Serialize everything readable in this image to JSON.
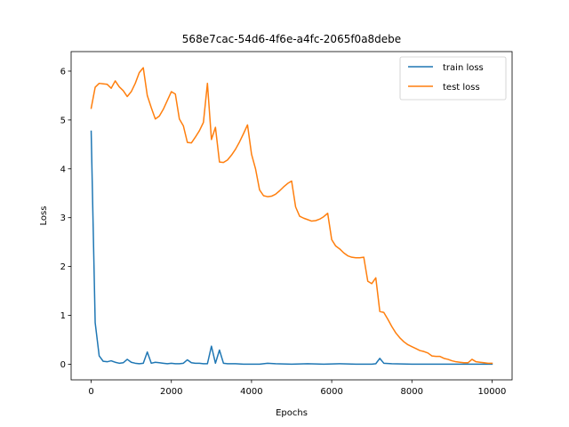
{
  "chart_data": {
    "type": "line",
    "title": "568e7cac-54d6-4f6e-a4fc-2065f0a8debe",
    "xlabel": "Epochs",
    "ylabel": "Loss",
    "xlim": [
      -500,
      10500
    ],
    "ylim": [
      -0.32,
      6.4
    ],
    "xticks": [
      0,
      2000,
      4000,
      6000,
      8000,
      10000
    ],
    "yticks": [
      0,
      1,
      2,
      3,
      4,
      5,
      6
    ],
    "grid": false,
    "legend": "top-right",
    "series": [
      {
        "name": "train loss",
        "color": "#1f77b4",
        "x": [
          0,
          100,
          200,
          300,
          400,
          500,
          600,
          700,
          800,
          900,
          1000,
          1100,
          1200,
          1300,
          1400,
          1500,
          1600,
          1700,
          1800,
          1900,
          2000,
          2100,
          2200,
          2300,
          2400,
          2500,
          2600,
          2700,
          2800,
          2900,
          3000,
          3100,
          3200,
          3300,
          3400,
          3600,
          3800,
          4000,
          4200,
          4400,
          4600,
          5000,
          5400,
          5800,
          6200,
          6600,
          7000,
          7100,
          7200,
          7300,
          7500,
          8000,
          8500,
          9000,
          9500,
          9700,
          10000
        ],
        "y": [
          4.77,
          0.85,
          0.17,
          0.06,
          0.05,
          0.07,
          0.04,
          0.02,
          0.03,
          0.1,
          0.04,
          0.02,
          0.01,
          0.02,
          0.25,
          0.02,
          0.04,
          0.03,
          0.02,
          0.01,
          0.02,
          0.01,
          0.01,
          0.02,
          0.09,
          0.03,
          0.02,
          0.02,
          0.01,
          0.01,
          0.37,
          0.02,
          0.29,
          0.02,
          0.01,
          0.01,
          0.0,
          0.0,
          0.0,
          0.02,
          0.01,
          0.0,
          0.01,
          0.0,
          0.01,
          0.0,
          0.0,
          0.01,
          0.12,
          0.02,
          0.01,
          0.0,
          0.0,
          0.0,
          0.0,
          0.0,
          0.0
        ]
      },
      {
        "name": "test loss",
        "color": "#ff7f0e",
        "x": [
          0,
          100,
          200,
          300,
          400,
          500,
          600,
          700,
          800,
          900,
          1000,
          1100,
          1200,
          1300,
          1400,
          1500,
          1600,
          1700,
          1800,
          1900,
          2000,
          2100,
          2200,
          2300,
          2400,
          2500,
          2600,
          2700,
          2800,
          2900,
          3000,
          3100,
          3200,
          3300,
          3400,
          3500,
          3600,
          3700,
          3800,
          3900,
          4000,
          4100,
          4200,
          4300,
          4400,
          4500,
          4600,
          4700,
          4800,
          4900,
          5000,
          5100,
          5200,
          5300,
          5400,
          5500,
          5600,
          5700,
          5800,
          5900,
          6000,
          6100,
          6200,
          6300,
          6400,
          6500,
          6600,
          6700,
          6800,
          6900,
          7000,
          7100,
          7200,
          7300,
          7400,
          7500,
          7600,
          7700,
          7800,
          7900,
          8000,
          8100,
          8200,
          8300,
          8400,
          8500,
          8600,
          8700,
          8800,
          8900,
          9000,
          9100,
          9200,
          9300,
          9400,
          9500,
          9600,
          9700,
          9800,
          9900,
          10000
        ],
        "y": [
          5.24,
          5.67,
          5.75,
          5.74,
          5.73,
          5.65,
          5.8,
          5.68,
          5.6,
          5.48,
          5.58,
          5.75,
          5.97,
          6.07,
          5.5,
          5.25,
          5.02,
          5.08,
          5.22,
          5.4,
          5.58,
          5.53,
          5.02,
          4.88,
          4.54,
          4.53,
          4.65,
          4.78,
          4.95,
          5.75,
          4.6,
          4.85,
          4.14,
          4.13,
          4.18,
          4.28,
          4.4,
          4.55,
          4.72,
          4.9,
          4.3,
          4.0,
          3.57,
          3.45,
          3.43,
          3.44,
          3.48,
          3.55,
          3.63,
          3.7,
          3.75,
          3.22,
          3.03,
          2.99,
          2.96,
          2.93,
          2.94,
          2.97,
          3.02,
          3.09,
          2.55,
          2.42,
          2.36,
          2.28,
          2.22,
          2.19,
          2.18,
          2.18,
          2.19,
          1.7,
          1.65,
          1.77,
          1.08,
          1.06,
          0.92,
          0.77,
          0.64,
          0.54,
          0.46,
          0.4,
          0.36,
          0.32,
          0.28,
          0.26,
          0.23,
          0.17,
          0.16,
          0.16,
          0.12,
          0.1,
          0.07,
          0.05,
          0.04,
          0.03,
          0.03,
          0.1,
          0.05,
          0.04,
          0.03,
          0.02,
          0.02
        ]
      }
    ]
  }
}
